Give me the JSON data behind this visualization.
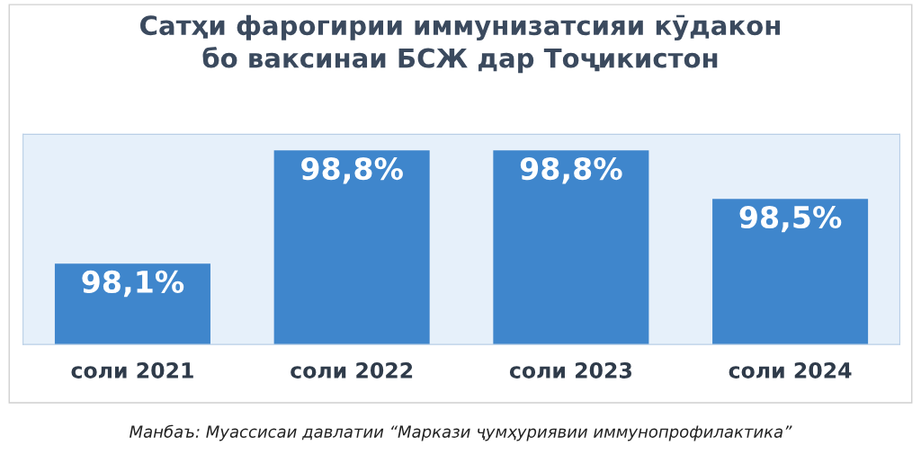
{
  "chart_data": {
    "type": "bar",
    "title": "Сатҳи фарогирии иммунизатсияи кӯдакон\nбо ваксинаи БСЖ дар Тоҷикистон",
    "categories": [
      "соли 2021",
      "соли 2022",
      "соли 2023",
      "соли 2024"
    ],
    "values": [
      98.1,
      98.8,
      98.8,
      98.5
    ],
    "value_labels": [
      "98,1%",
      "98,8%",
      "98,8%",
      "98,5%"
    ],
    "color": "#3f86cc",
    "ylim": [
      97.6,
      98.9
    ],
    "tick_labels": "x",
    "grid": false,
    "legend": false,
    "annotations": [
      "Манбаъ: Муассисаи давлатии “Маркази ҷумҳуриявии иммунопрофилактика”"
    ]
  }
}
